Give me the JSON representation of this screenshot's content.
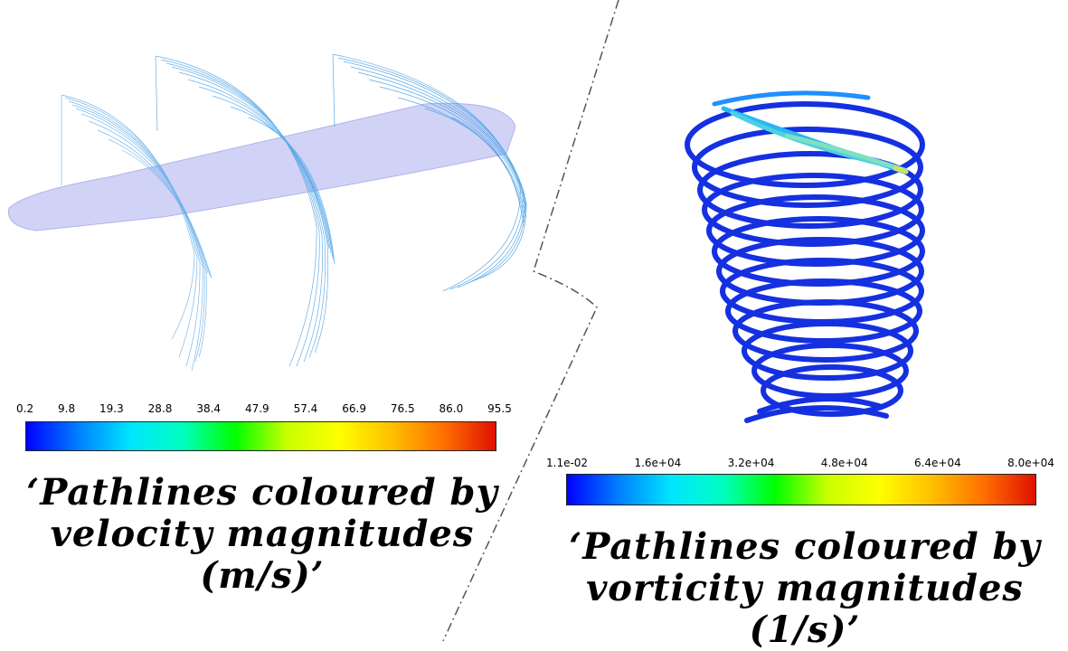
{
  "left_panel": {
    "colorbar_ticks": [
      "0.2",
      "9.8",
      "19.3",
      "28.8",
      "38.4",
      "47.9",
      "57.4",
      "66.9",
      "76.5",
      "86.0",
      "95.5"
    ],
    "caption_line1": "‘Pathlines coloured by",
    "caption_line2": "velocity magnitudes (m/s)’"
  },
  "right_panel": {
    "colorbar_ticks": [
      "1.1e-02",
      "1.6e+04",
      "3.2e+04",
      "4.8e+04",
      "6.4e+04",
      "8.0e+04"
    ],
    "caption_line1": "‘Pathlines coloured by",
    "caption_line2": "vorticity magnitudes (1/s)’"
  },
  "colors": {
    "rainbow": [
      "#0000ff",
      "#0080ff",
      "#00e5ff",
      "#00ffc0",
      "#00ff00",
      "#c8ff00",
      "#ffff00",
      "#ffc000",
      "#ff7000",
      "#e01000"
    ],
    "hull": "#c9cbf5",
    "pathline_velocity": "#3aa0e8",
    "pathline_vorticity": "#1530e0"
  }
}
